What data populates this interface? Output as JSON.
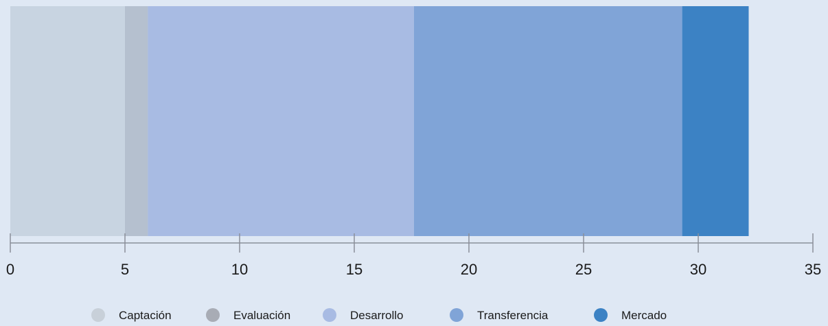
{
  "chart_data": {
    "type": "bar",
    "orientation": "horizontal-stacked",
    "title": "",
    "xlabel": "",
    "ylabel": "",
    "xlim": [
      0,
      35
    ],
    "x_ticks": [
      0,
      5,
      10,
      15,
      20,
      25,
      30,
      35
    ],
    "x_tick_labels": [
      "0",
      "5",
      "10",
      "15",
      "20",
      "25",
      "30",
      "35"
    ],
    "grid": false,
    "legend_position": "bottom-center",
    "series": [
      {
        "name": "Captación",
        "value": 5.0,
        "color": "#c8d4e1"
      },
      {
        "name": "Evaluación",
        "value": 1.0,
        "color": "#b5c0cf"
      },
      {
        "name": "Desarrollo",
        "value": 11.6,
        "color": "#a8bbe3"
      },
      {
        "name": "Transferencia",
        "value": 11.7,
        "color": "#80a4d7"
      },
      {
        "name": "Mercado",
        "value": 2.9,
        "color": "#3c82c4"
      }
    ],
    "legend": [
      {
        "label": "Captación",
        "color": "#c8d0d9"
      },
      {
        "label": "Evaluación",
        "color": "#a8acb5"
      },
      {
        "label": "Desarrollo",
        "color": "#a8bbe3"
      },
      {
        "label": "Transferencia",
        "color": "#80a4d7"
      },
      {
        "label": "Mercado",
        "color": "#3c82c4"
      }
    ]
  }
}
